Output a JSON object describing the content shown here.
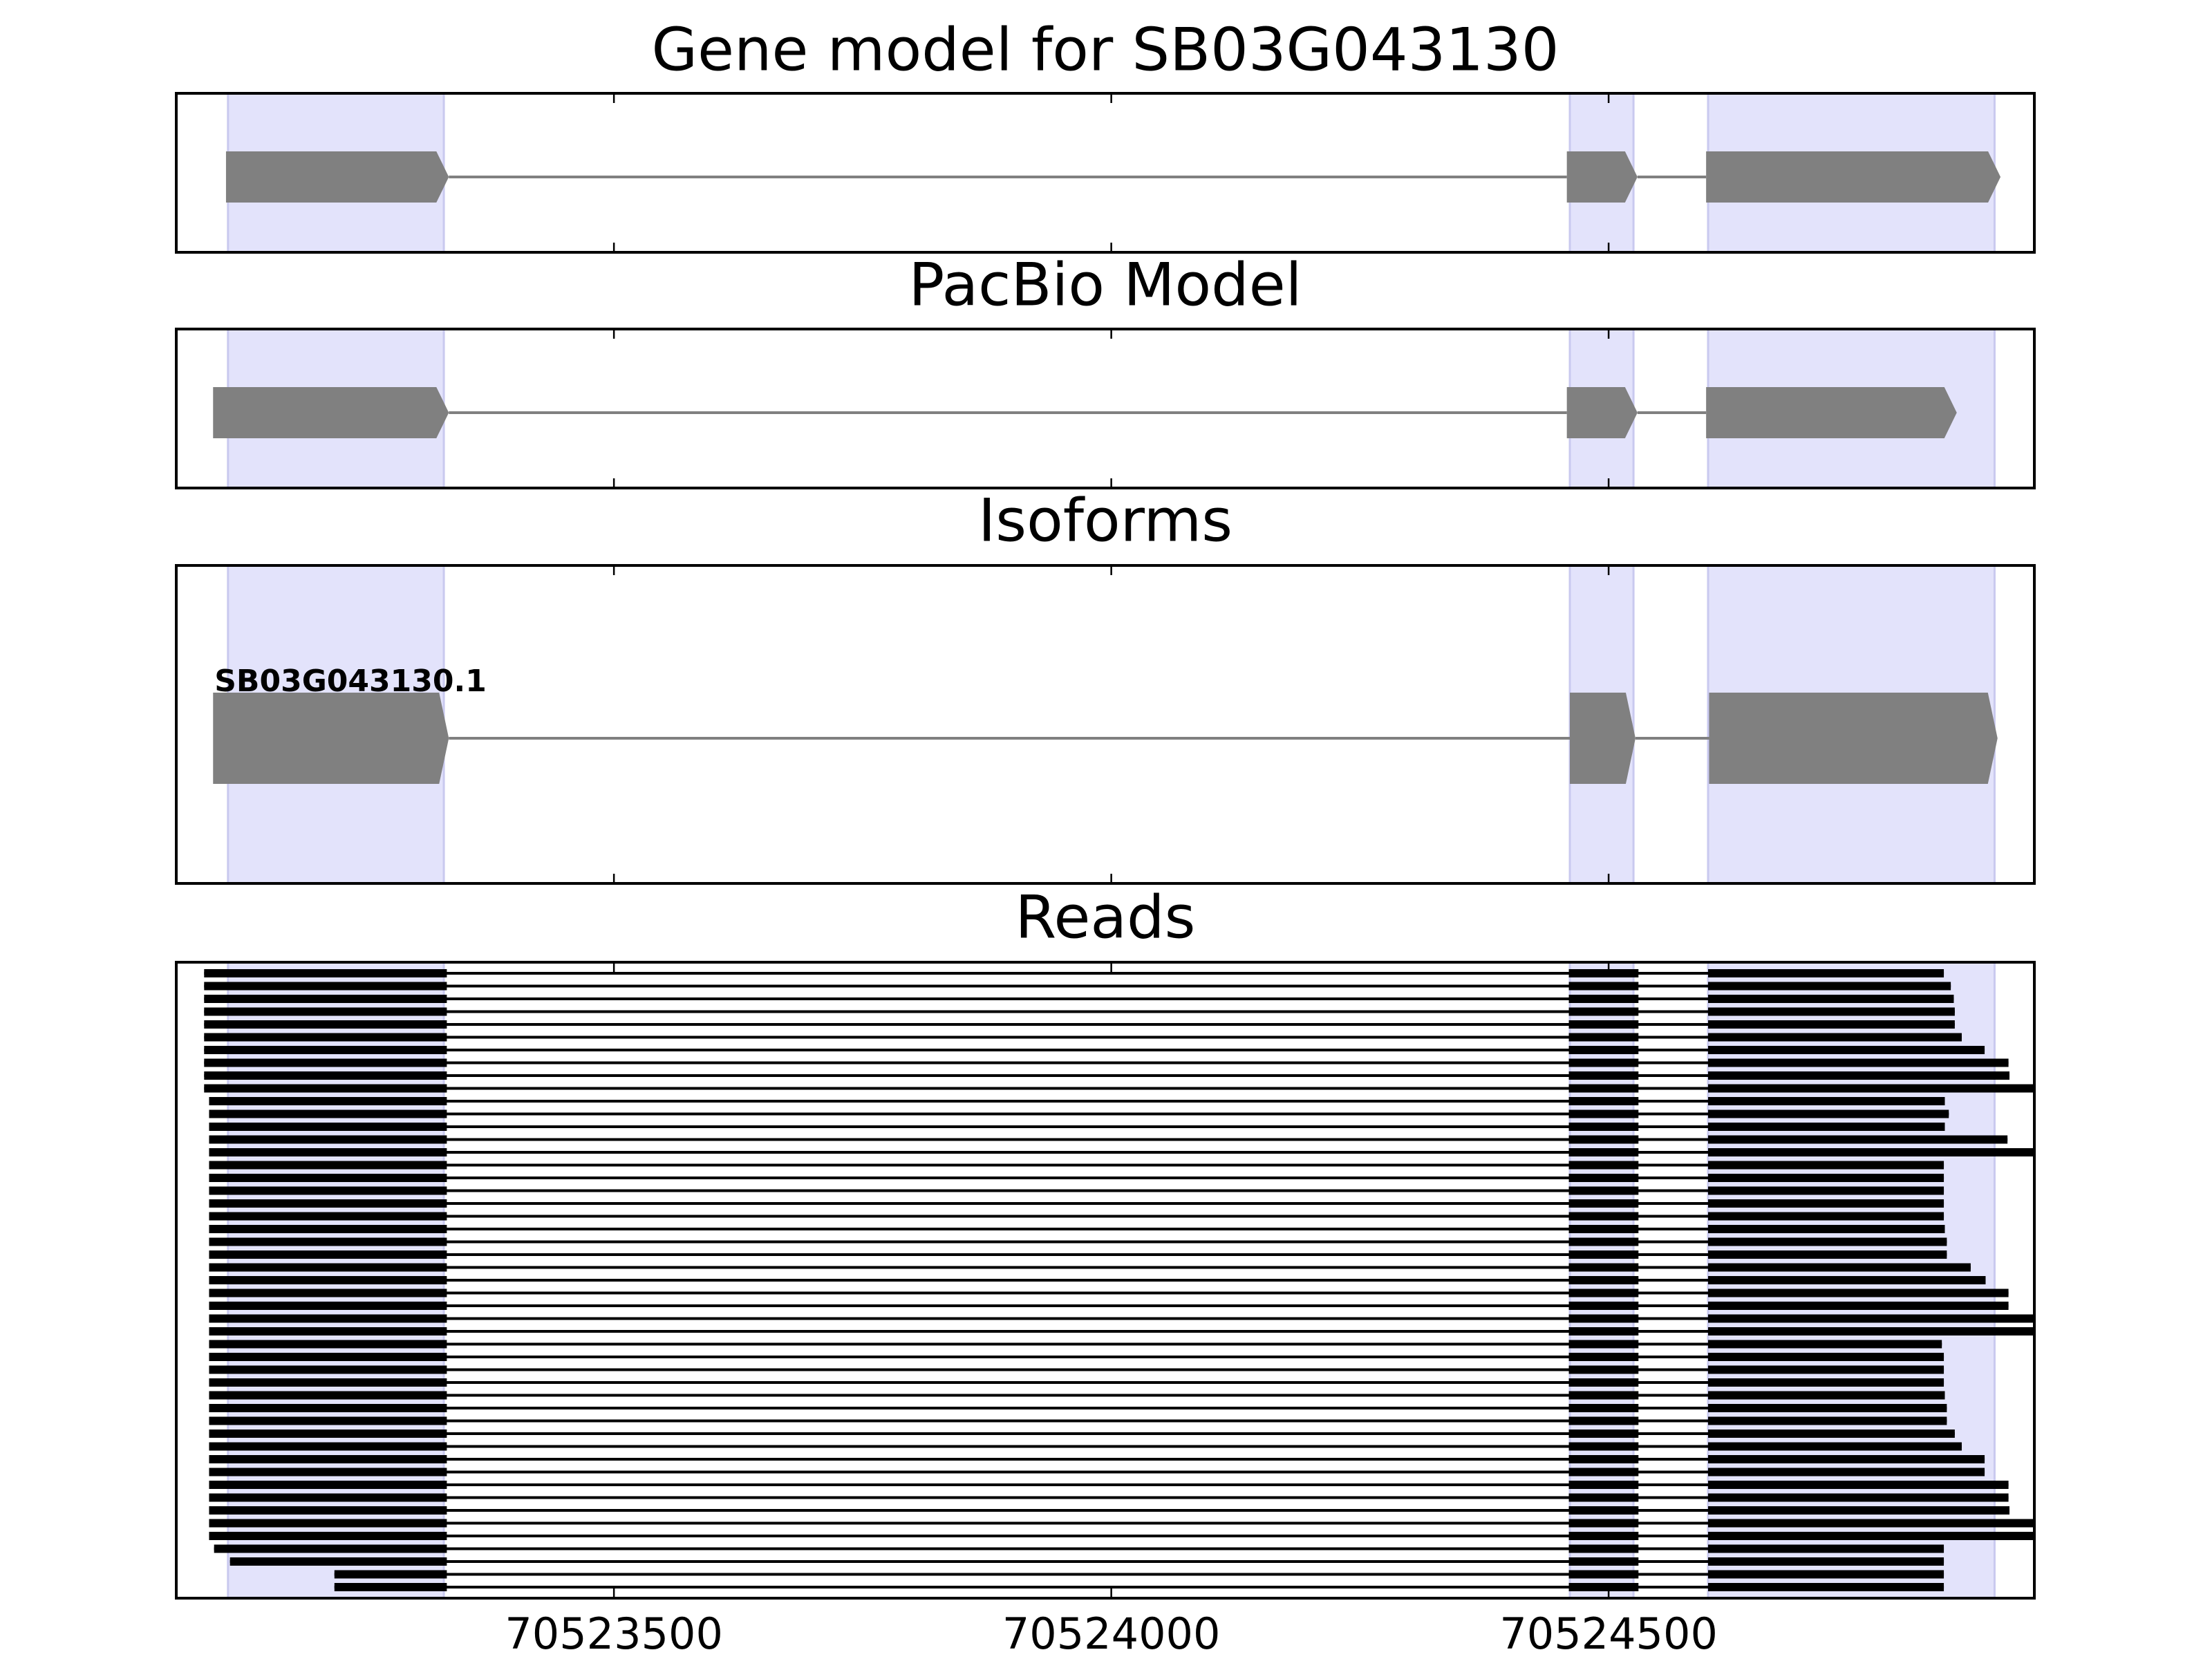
{
  "chart_data": {
    "type": "gene-track",
    "xlim": [
      70523060,
      70524928
    ],
    "xticks": [
      70523500,
      70524000,
      70524500
    ],
    "highlight_color": "#e3e3fb",
    "exon_regions": [
      [
        70523112,
        70523329
      ],
      [
        70524461,
        70524525
      ],
      [
        70524600,
        70524888
      ]
    ],
    "panels": [
      {
        "title": "Gene model for SB03G043130",
        "color": "#808080",
        "exons": [
          [
            70523110,
            70523334
          ],
          [
            70524458,
            70524529
          ],
          [
            70524598,
            70524894
          ]
        ]
      },
      {
        "title": "PacBio Model",
        "color": "#808080",
        "exons": [
          [
            70523097,
            70523334
          ],
          [
            70524458,
            70524529
          ],
          [
            70524598,
            70524850
          ]
        ]
      },
      {
        "title": "Isoforms",
        "color": "#808080",
        "label": "SB03G043130.1",
        "exons": [
          [
            70523097,
            70523334
          ],
          [
            70524461,
            70524527
          ],
          [
            70524601,
            70524891
          ]
        ]
      },
      {
        "title": "Reads",
        "color": "#000000",
        "introns": [
          [
            70523332,
            70524460
          ],
          [
            70524530,
            70524600
          ]
        ],
        "starts": [
          70523088,
          70523088,
          70523088,
          70523088,
          70523088,
          70523088,
          70523088,
          70523088,
          70523088,
          70523088,
          70523093,
          70523093,
          70523093,
          70523093,
          70523093,
          70523093,
          70523093,
          70523093,
          70523093,
          70523093,
          70523093,
          70523093,
          70523093,
          70523093,
          70523093,
          70523093,
          70523093,
          70523093,
          70523093,
          70523093,
          70523093,
          70523093,
          70523093,
          70523093,
          70523093,
          70523093,
          70523093,
          70523093,
          70523093,
          70523093,
          70523093,
          70523093,
          70523093,
          70523093,
          70523093,
          70523098,
          70523114,
          70523219,
          70523219
        ],
        "ends": [
          70524837,
          70524844,
          70524847,
          70524848,
          70524848,
          70524855,
          70524878,
          70524902,
          70524903,
          70524940,
          70524838,
          70524842,
          70524838,
          70524901,
          70524940,
          70524837,
          70524837,
          70524837,
          70524837,
          70524837,
          70524838,
          70524840,
          70524840,
          70524864,
          70524879,
          70524902,
          70524902,
          70524940,
          70524940,
          70524835,
          70524837,
          70524837,
          70524837,
          70524838,
          70524840,
          70524840,
          70524848,
          70524855,
          70524878,
          70524878,
          70524902,
          70524902,
          70524903,
          70524940,
          70524940,
          70524837,
          70524837,
          70524837,
          70524837
        ]
      }
    ]
  }
}
